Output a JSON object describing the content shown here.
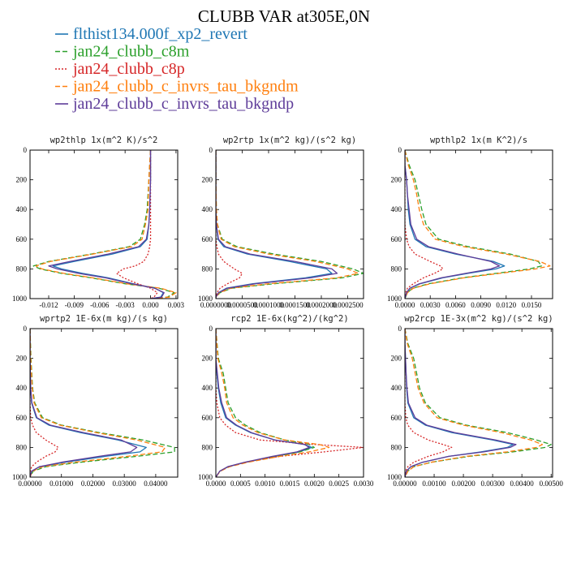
{
  "title": "CLUBB VAR at305E,0N",
  "legend": [
    {
      "label": "flthist134.000f_xp2_revert",
      "color": "#1f77b4",
      "dash": "solid"
    },
    {
      "label": "jan24_clubb_c8m",
      "color": "#2ca02c",
      "dash": "dash"
    },
    {
      "label": "jan24_clubb_c8p",
      "color": "#d62728",
      "dash": "dot"
    },
    {
      "label": "jan24_clubb_c_invrs_tau_bkgndm",
      "color": "#ff7f0e",
      "dash": "dash"
    },
    {
      "label": "jan24_clubb_c_invrs_tau_bkgndp",
      "color": "#5e3c99",
      "dash": "solid"
    }
  ],
  "chart_data": [
    {
      "type": "line",
      "title": "wp2thlp  1x(m^2 K)/s^2",
      "xlim": [
        -0.0142,
        0.0032
      ],
      "ylim": [
        0,
        1000
      ],
      "y_inverted": true,
      "xticks": [
        "-0.012",
        "-0.009",
        "-0.006",
        "-0.003",
        "0.000",
        "0.003"
      ],
      "xtick_values": [
        -0.012,
        -0.009,
        -0.006,
        -0.003,
        0.0,
        0.003
      ],
      "yticks": [
        "0",
        "200",
        "400",
        "600",
        "800",
        "1000"
      ],
      "y": [
        0,
        200,
        400,
        500,
        600,
        650,
        700,
        750,
        780,
        800,
        830,
        860,
        900,
        930,
        960,
        990,
        1000
      ],
      "series": [
        {
          "name": "flthist134.000f_xp2_revert",
          "values": [
            0.0,
            0.0,
            -0.0001,
            -0.0002,
            -0.0004,
            -0.0012,
            -0.0045,
            -0.009,
            -0.0115,
            -0.0105,
            -0.008,
            -0.005,
            -0.002,
            0.0005,
            0.0015,
            0.0012,
            0.0
          ]
        },
        {
          "name": "jan24_clubb_c8m",
          "values": [
            0.0,
            -0.0002,
            -0.0004,
            -0.0007,
            -0.0012,
            -0.0025,
            -0.007,
            -0.012,
            -0.0138,
            -0.013,
            -0.0105,
            -0.007,
            -0.003,
            0.001,
            0.0028,
            0.002,
            0.0
          ]
        },
        {
          "name": "jan24_clubb_c8p",
          "values": [
            0.0,
            0.0,
            0.0,
            0.0,
            0.0,
            -0.0001,
            -0.0003,
            -0.0008,
            -0.0018,
            -0.0032,
            -0.004,
            -0.0032,
            -0.0015,
            0.0,
            0.0008,
            0.0004,
            0.0
          ]
        },
        {
          "name": "jan24_clubb_c_invrs_tau_bkgndm",
          "values": [
            0.0,
            -0.0002,
            -0.0003,
            -0.0006,
            -0.001,
            -0.0022,
            -0.0068,
            -0.0118,
            -0.0135,
            -0.0128,
            -0.0102,
            -0.0068,
            -0.0028,
            0.0012,
            0.003,
            0.0022,
            0.0
          ]
        },
        {
          "name": "jan24_clubb_c_invrs_tau_bkgndp",
          "values": [
            0.0,
            0.0,
            -0.0001,
            -0.0002,
            -0.0005,
            -0.0014,
            -0.005,
            -0.0095,
            -0.012,
            -0.011,
            -0.0085,
            -0.0053,
            -0.0022,
            0.0005,
            0.0016,
            0.0013,
            0.0
          ]
        }
      ]
    },
    {
      "type": "line",
      "title": "wp2rtp  1x(m^2 kg)/(s^2 kg)",
      "xlim": [
        0,
        0.00028
      ],
      "ylim": [
        0,
        1000
      ],
      "y_inverted": true,
      "xticks": [
        "0.0000000",
        "0.0000500",
        "0.0001000",
        "0.0001500",
        "0.0002000",
        "0.0002500"
      ],
      "xtick_values": [
        0,
        5e-05,
        0.0001,
        0.00015,
        0.0002,
        0.00025
      ],
      "yticks": [
        "0",
        "200",
        "400",
        "600",
        "800",
        "1000"
      ],
      "y": [
        0,
        200,
        400,
        500,
        600,
        650,
        700,
        750,
        800,
        830,
        860,
        900,
        930,
        960,
        990,
        1000
      ],
      "series": [
        {
          "name": "flthist134.000f_xp2_revert",
          "values": [
            0.0,
            0.0,
            0.0,
            1e-06,
            4e-06,
            1.5e-05,
            6e-05,
            0.00014,
            0.00021,
            0.00022,
            0.00017,
            7e-05,
            2e-05,
            5e-06,
            0.0,
            0.0
          ]
        },
        {
          "name": "jan24_clubb_c8m",
          "values": [
            0.0,
            0.0,
            1e-06,
            3e-06,
            1.2e-05,
            4e-05,
            0.00011,
            0.0002,
            0.00026,
            0.00028,
            0.00024,
            0.00011,
            3e-05,
            8e-06,
            0.0,
            0.0
          ]
        },
        {
          "name": "jan24_clubb_c8p",
          "values": [
            0.0,
            0.0,
            0.0,
            0.0,
            0.0,
            2e-06,
            5e-06,
            1.5e-05,
            3.5e-05,
            5e-05,
            4.5e-05,
            2.2e-05,
            8e-06,
            2e-06,
            0.0,
            0.0
          ]
        },
        {
          "name": "jan24_clubb_c_invrs_tau_bkgndm",
          "values": [
            0.0,
            0.0,
            1e-06,
            3e-06,
            1e-05,
            3.5e-05,
            0.0001,
            0.00019,
            0.00025,
            0.00027,
            0.00023,
            0.0001,
            2.8e-05,
            7e-06,
            0.0,
            0.0
          ]
        },
        {
          "name": "jan24_clubb_c_invrs_tau_bkgndp",
          "values": [
            0.0,
            0.0,
            0.0,
            1e-06,
            5e-06,
            1.8e-05,
            6.5e-05,
            0.00015,
            0.00022,
            0.00023,
            0.00018,
            7.5e-05,
            2.2e-05,
            5e-06,
            0.0,
            0.0
          ]
        }
      ]
    },
    {
      "type": "line",
      "title": "wpthlp2  1x(m K^2)/s",
      "xlim": [
        0,
        0.0175
      ],
      "ylim": [
        0,
        1000
      ],
      "y_inverted": true,
      "xticks": [
        "0.0000",
        "0.0030",
        "0.0060",
        "0.0090",
        "0.0120",
        "0.0150"
      ],
      "xtick_values": [
        0,
        0.003,
        0.006,
        0.009,
        0.012,
        0.015
      ],
      "yticks": [
        "0",
        "200",
        "400",
        "600",
        "800",
        "1000"
      ],
      "y": [
        0,
        100,
        200,
        300,
        400,
        500,
        600,
        650,
        700,
        750,
        780,
        800,
        830,
        860,
        900,
        930,
        960,
        1000
      ],
      "series": [
        {
          "name": "flthist134.000f_xp2_revert",
          "values": [
            0.0,
            0.0,
            0.0002,
            0.0003,
            0.0004,
            0.0006,
            0.0012,
            0.0025,
            0.006,
            0.0105,
            0.0118,
            0.0108,
            0.0075,
            0.0045,
            0.0018,
            0.0006,
            0.0002,
            0.0
          ]
        },
        {
          "name": "jan24_clubb_c8m",
          "values": [
            0.0,
            0.0005,
            0.0012,
            0.0016,
            0.002,
            0.0025,
            0.004,
            0.0075,
            0.0125,
            0.0158,
            0.0162,
            0.0148,
            0.0108,
            0.0068,
            0.0028,
            0.0009,
            0.0003,
            0.0
          ]
        },
        {
          "name": "jan24_clubb_c8p",
          "values": [
            0.0,
            0.0,
            0.0,
            0.0,
            0.0,
            0.0,
            0.0002,
            0.0005,
            0.0012,
            0.003,
            0.0042,
            0.0045,
            0.0035,
            0.0022,
            0.001,
            0.0003,
            0.0001,
            0.0
          ]
        },
        {
          "name": "jan24_clubb_c_invrs_tau_bkgndm",
          "values": [
            0.0,
            0.0004,
            0.001,
            0.0014,
            0.0017,
            0.0022,
            0.0036,
            0.007,
            0.012,
            0.016,
            0.0172,
            0.0155,
            0.0112,
            0.007,
            0.003,
            0.001,
            0.0003,
            0.0
          ]
        },
        {
          "name": "jan24_clubb_c_invrs_tau_bkgndp",
          "values": [
            0.0,
            0.0,
            0.0002,
            0.0003,
            0.0005,
            0.0007,
            0.0014,
            0.0028,
            0.0063,
            0.0102,
            0.0112,
            0.0102,
            0.0072,
            0.0043,
            0.0017,
            0.0006,
            0.0002,
            0.0
          ]
        }
      ]
    },
    {
      "type": "line",
      "title": "wprtp2  1E-6x(m kg)/(s kg)",
      "xlim": [
        0,
        0.047
      ],
      "ylim": [
        0,
        1000
      ],
      "y_inverted": true,
      "xticks": [
        "0.00000",
        "0.01000",
        "0.02000",
        "0.03000",
        "0.04000"
      ],
      "xtick_values": [
        0,
        0.01,
        0.02,
        0.03,
        0.04
      ],
      "yticks": [
        "0",
        "200",
        "400",
        "600",
        "800",
        "1000"
      ],
      "y": [
        0,
        200,
        400,
        500,
        600,
        650,
        700,
        750,
        800,
        830,
        860,
        900,
        930,
        960,
        1000
      ],
      "series": [
        {
          "name": "flthist134.000f_xp2_revert",
          "values": [
            0.0,
            0.0,
            0.0002,
            0.0005,
            0.002,
            0.006,
            0.016,
            0.028,
            0.037,
            0.035,
            0.024,
            0.011,
            0.003,
            0.0005,
            0.0
          ]
        },
        {
          "name": "jan24_clubb_c8m",
          "values": [
            0.0,
            0.0003,
            0.0008,
            0.0015,
            0.004,
            0.01,
            0.022,
            0.036,
            0.046,
            0.046,
            0.034,
            0.016,
            0.005,
            0.001,
            0.0
          ]
        },
        {
          "name": "jan24_clubb_c8p",
          "values": [
            0.0,
            0.0,
            0.0,
            0.0,
            0.0002,
            0.0008,
            0.002,
            0.005,
            0.009,
            0.008,
            0.005,
            0.002,
            0.0005,
            0.0001,
            0.0
          ]
        },
        {
          "name": "jan24_clubb_c_invrs_tau_bkgndm",
          "values": [
            0.0,
            0.0002,
            0.0007,
            0.0013,
            0.0036,
            0.0095,
            0.021,
            0.034,
            0.043,
            0.042,
            0.031,
            0.014,
            0.004,
            0.0008,
            0.0
          ]
        },
        {
          "name": "jan24_clubb_c_invrs_tau_bkgndp",
          "values": [
            0.0,
            0.0,
            0.0002,
            0.0006,
            0.0022,
            0.0065,
            0.017,
            0.029,
            0.034,
            0.032,
            0.022,
            0.01,
            0.003,
            0.0005,
            0.0
          ]
        }
      ]
    },
    {
      "type": "line",
      "title": "rcp2  1E-6x(kg^2)/(kg^2)",
      "xlim": [
        0,
        0.003
      ],
      "ylim": [
        0,
        1000
      ],
      "y_inverted": true,
      "xticks": [
        "0.0000",
        "0.0005",
        "0.0010",
        "0.0015",
        "0.0020",
        "0.0025",
        "0.0030"
      ],
      "xtick_values": [
        0,
        0.0005,
        0.001,
        0.0015,
        0.002,
        0.0025,
        0.003
      ],
      "yticks": [
        "0",
        "200",
        "400",
        "600",
        "800",
        "1000"
      ],
      "y": [
        0,
        200,
        300,
        400,
        500,
        600,
        650,
        700,
        750,
        780,
        800,
        830,
        860,
        900,
        930,
        960,
        1000
      ],
      "series": [
        {
          "name": "flthist134.000f_xp2_revert",
          "values": [
            0.0,
            0.0,
            2e-05,
            5e-05,
            0.0001,
            0.0002,
            0.0004,
            0.0007,
            0.0012,
            0.0018,
            0.00195,
            0.0017,
            0.0012,
            0.0006,
            0.00025,
            8e-05,
            0.0
          ]
        },
        {
          "name": "jan24_clubb_c8m",
          "values": [
            0.0,
            5e-05,
            0.00015,
            0.0002,
            0.00025,
            0.0004,
            0.0006,
            0.0009,
            0.0014,
            0.0019,
            0.002,
            0.0017,
            0.0012,
            0.0006,
            0.00025,
            8e-05,
            0.0
          ]
        },
        {
          "name": "jan24_clubb_c8p",
          "values": [
            0.0,
            0.0,
            0.0,
            0.0,
            2e-05,
            8e-05,
            0.0002,
            0.0004,
            0.0009,
            0.002,
            0.003,
            0.0022,
            0.0013,
            0.0006,
            0.00025,
            8e-05,
            0.0
          ]
        },
        {
          "name": "jan24_clubb_c_invrs_tau_bkgndm",
          "values": [
            0.0,
            4e-05,
            0.00012,
            0.00018,
            0.00022,
            0.00035,
            0.00055,
            0.00085,
            0.0014,
            0.0021,
            0.0023,
            0.0019,
            0.0013,
            0.00065,
            0.00028,
            9e-05,
            0.0
          ]
        },
        {
          "name": "jan24_clubb_c_invrs_tau_bkgndp",
          "values": [
            0.0,
            0.0,
            3e-05,
            6e-05,
            0.00012,
            0.00022,
            0.00042,
            0.00072,
            0.0012,
            0.0018,
            0.0019,
            0.00165,
            0.00115,
            0.00058,
            0.00024,
            8e-05,
            0.0
          ]
        }
      ]
    },
    {
      "type": "line",
      "title": "wp2rcp  1E-3x(m^2 kg)/(s^2 kg)",
      "xlim": [
        0,
        0.00505
      ],
      "ylim": [
        0,
        1000
      ],
      "y_inverted": true,
      "xticks": [
        "0.00000",
        "0.00100",
        "0.00200",
        "0.00300",
        "0.00400",
        "0.00500"
      ],
      "xtick_values": [
        0,
        0.001,
        0.002,
        0.003,
        0.004,
        0.005
      ],
      "yticks": [
        "0",
        "200",
        "400",
        "600",
        "800",
        "1000"
      ],
      "y": [
        0,
        100,
        200,
        300,
        400,
        500,
        600,
        650,
        700,
        750,
        780,
        800,
        830,
        860,
        900,
        930,
        960,
        1000
      ],
      "series": [
        {
          "name": "flthist134.000f_xp2_revert",
          "values": [
            0.0,
            0.0,
            2e-05,
            4e-05,
            6e-05,
            0.0001,
            0.0003,
            0.0007,
            0.0016,
            0.003,
            0.0037,
            0.0035,
            0.0026,
            0.0015,
            0.0006,
            0.0002,
            5e-05,
            0.0
          ]
        },
        {
          "name": "jan24_clubb_c8m",
          "values": [
            0.0,
            0.0001,
            0.0003,
            0.0004,
            0.0005,
            0.0007,
            0.0012,
            0.0021,
            0.0035,
            0.0045,
            0.005,
            0.0048,
            0.0037,
            0.0022,
            0.0009,
            0.0003,
            0.0001,
            0.0
          ]
        },
        {
          "name": "jan24_clubb_c8p",
          "values": [
            0.0,
            0.0,
            0.0,
            0.0,
            0.0,
            0.0,
            3e-05,
            0.0001,
            0.0003,
            0.0008,
            0.0013,
            0.0016,
            0.0013,
            0.0008,
            0.0003,
            0.0001,
            2e-05,
            0.0
          ]
        },
        {
          "name": "jan24_clubb_c_invrs_tau_bkgndm",
          "values": [
            0.0,
            8e-05,
            0.00025,
            0.00035,
            0.00045,
            0.00065,
            0.0011,
            0.002,
            0.0033,
            0.0043,
            0.0047,
            0.0045,
            0.0035,
            0.0021,
            0.0009,
            0.0003,
            0.0001,
            0.0
          ]
        },
        {
          "name": "jan24_clubb_c_invrs_tau_bkgndp",
          "values": [
            0.0,
            0.0,
            2e-05,
            4e-05,
            7e-05,
            0.00012,
            0.00035,
            0.00075,
            0.0017,
            0.0031,
            0.0038,
            0.0036,
            0.0027,
            0.0015,
            0.0006,
            0.0002,
            5e-05,
            0.0
          ]
        }
      ]
    }
  ]
}
